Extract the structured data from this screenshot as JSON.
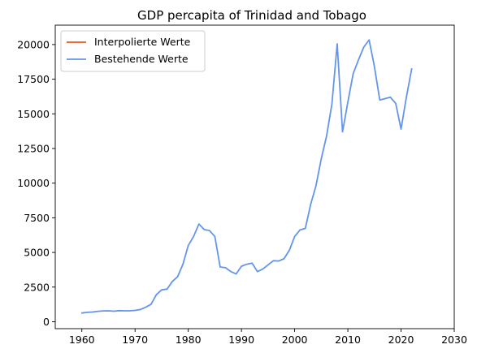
{
  "chart_data": {
    "type": "line",
    "title": "GDP percapita of Trinidad and Tobago",
    "xlabel": "",
    "ylabel": "",
    "xlim": [
      1955,
      2030
    ],
    "ylim": [
      -500,
      21400
    ],
    "xticks": [
      1960,
      1970,
      1980,
      1990,
      2000,
      2010,
      2020,
      2030
    ],
    "xtick_labels": [
      "1960",
      "1970",
      "1980",
      "1990",
      "2000",
      "2010",
      "2020",
      "2030"
    ],
    "yticks": [
      0,
      2500,
      5000,
      7500,
      10000,
      12500,
      15000,
      17500,
      20000
    ],
    "ytick_labels": [
      "0",
      "2500",
      "5000",
      "7500",
      "10000",
      "12500",
      "15000",
      "17500",
      "20000"
    ],
    "grid": false,
    "legend": {
      "position": "top-left"
    },
    "series": [
      {
        "name": "Interpolierte Werte",
        "color": "#e8561f",
        "x": [],
        "y": []
      },
      {
        "name": "Bestehende Werte",
        "color": "#6495ed",
        "x": [
          1960,
          1961,
          1962,
          1963,
          1964,
          1965,
          1966,
          1967,
          1968,
          1969,
          1970,
          1971,
          1972,
          1973,
          1974,
          1975,
          1976,
          1977,
          1978,
          1979,
          1980,
          1981,
          1982,
          1983,
          1984,
          1985,
          1986,
          1987,
          1988,
          1989,
          1990,
          1991,
          1992,
          1993,
          1994,
          1995,
          1996,
          1997,
          1998,
          1999,
          2000,
          2001,
          2002,
          2003,
          2004,
          2005,
          2006,
          2007,
          2008,
          2009,
          2010,
          2011,
          2012,
          2013,
          2014,
          2015,
          2016,
          2017,
          2018,
          2019,
          2020,
          2021,
          2022
        ],
        "y": [
          630,
          680,
          700,
          750,
          780,
          790,
          760,
          800,
          790,
          790,
          820,
          880,
          1050,
          1250,
          1950,
          2300,
          2350,
          2900,
          3250,
          4150,
          5500,
          6150,
          7050,
          6650,
          6580,
          6150,
          3950,
          3900,
          3620,
          3450,
          4000,
          4150,
          4230,
          3620,
          3800,
          4100,
          4400,
          4380,
          4550,
          5150,
          6150,
          6620,
          6730,
          8450,
          9800,
          11750,
          13400,
          15700,
          20050,
          13700,
          15850,
          17900,
          18900,
          19820,
          20330,
          18400,
          16000,
          16100,
          16200,
          15750,
          13900,
          16200,
          18250
        ]
      }
    ]
  }
}
